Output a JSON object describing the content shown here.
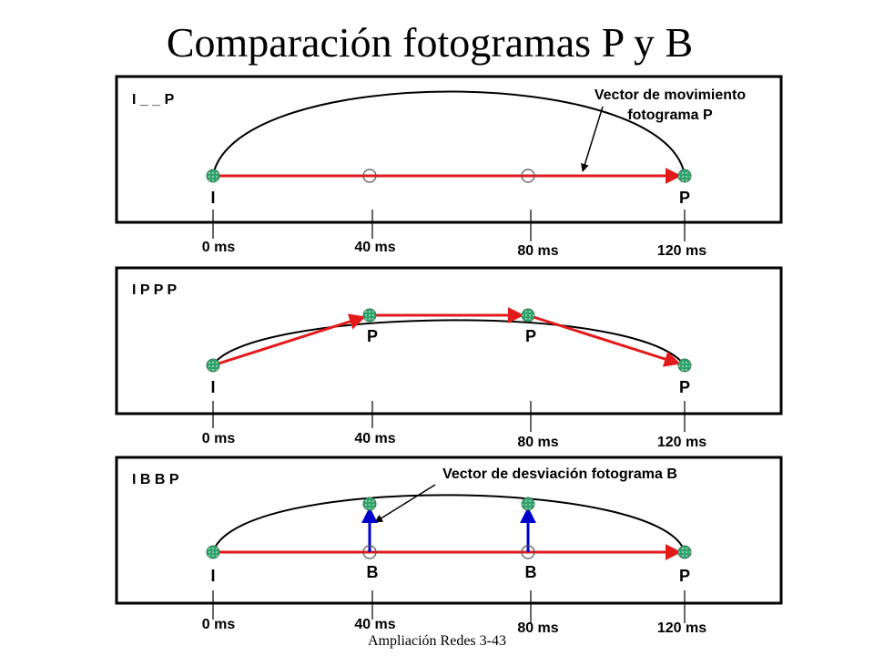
{
  "title": "Comparación fotogramas P y B",
  "footer": "Ampliación Redes 3-43",
  "panels": [
    {
      "sequence_label": "I _ _ P",
      "annotation": {
        "line1": "Vector de movimiento",
        "line2": "fotograma P"
      },
      "frame_labels": [
        "I",
        "P"
      ],
      "time_labels": [
        "0 ms",
        "40 ms",
        "80 ms",
        "120 ms"
      ]
    },
    {
      "sequence_label": "I P P P",
      "frame_labels": [
        "I",
        "P",
        "P",
        "P"
      ],
      "time_labels": [
        "0 ms",
        "40 ms",
        "80 ms",
        "120 ms"
      ]
    },
    {
      "sequence_label": "I B B P",
      "annotation": {
        "line1": "Vector de desviación fotograma B"
      },
      "frame_labels": [
        "I",
        "B",
        "B",
        "P"
      ],
      "time_labels": [
        "0 ms",
        "40 ms",
        "80 ms",
        "120 ms"
      ]
    }
  ],
  "colors": {
    "motion_vector": "#e31a1c",
    "deviation_vector": "#0000cc",
    "node_fill": "#2fa36b",
    "frame_border": "#000000"
  }
}
